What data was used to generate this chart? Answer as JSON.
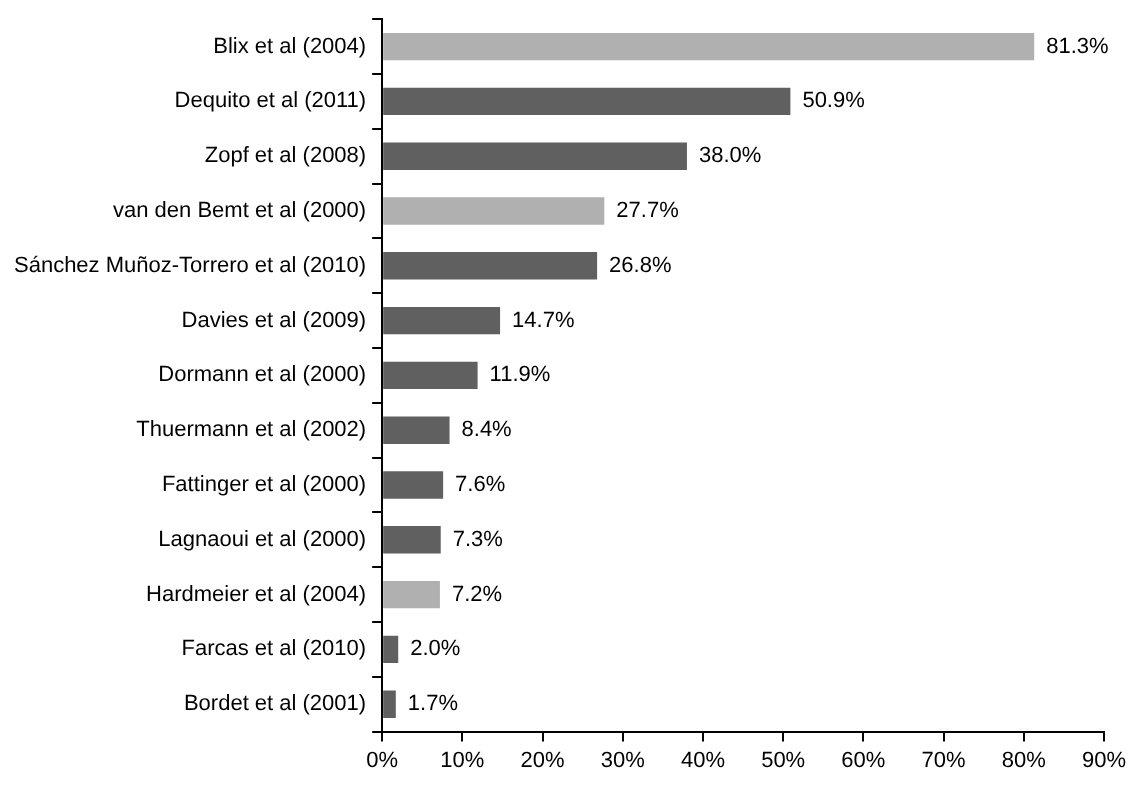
{
  "chart_data": {
    "type": "bar",
    "orientation": "horizontal",
    "categories": [
      "Blix et al (2004)",
      "Dequito et al (2011)",
      "Zopf et al (2008)",
      "van den Bemt et al (2000)",
      "Sánchez Muñoz-Torrero et al (2010)",
      "Davies et al (2009)",
      "Dormann et al (2000)",
      "Thuermann et al (2002)",
      "Fattinger et al (2000)",
      "Lagnaoui et al (2000)",
      "Hardmeier et al (2004)",
      "Farcas et al (2010)",
      "Bordet et al (2001)"
    ],
    "values": [
      81.3,
      50.9,
      38.0,
      27.7,
      26.8,
      14.7,
      11.9,
      8.4,
      7.6,
      7.3,
      7.2,
      2.0,
      1.7
    ],
    "value_labels": [
      "81.3%",
      "50.9%",
      "38.0%",
      "27.7%",
      "26.8%",
      "14.7%",
      "11.9%",
      "8.4%",
      "7.6%",
      "7.3%",
      "7.2%",
      "2.0%",
      "1.7%"
    ],
    "colors": [
      "#b0b0b0",
      "#606060",
      "#606060",
      "#b0b0b0",
      "#606060",
      "#606060",
      "#606060",
      "#606060",
      "#606060",
      "#606060",
      "#b0b0b0",
      "#606060",
      "#606060"
    ],
    "xlim": [
      0,
      90
    ],
    "xticks": [
      {
        "value": 0,
        "label": "0%"
      },
      {
        "value": 10,
        "label": "10%"
      },
      {
        "value": 20,
        "label": "20%"
      },
      {
        "value": 30,
        "label": "30%"
      },
      {
        "value": 40,
        "label": "40%"
      },
      {
        "value": 50,
        "label": "50%"
      },
      {
        "value": 60,
        "label": "60%"
      },
      {
        "value": 70,
        "label": "70%"
      },
      {
        "value": 80,
        "label": "80%"
      },
      {
        "value": 90,
        "label": "90%"
      }
    ],
    "grid": false,
    "legend": false
  }
}
